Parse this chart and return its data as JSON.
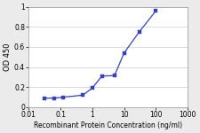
{
  "x": [
    0.031,
    0.063,
    0.125,
    0.5,
    1.0,
    2.0,
    5.0,
    10.0,
    30.0,
    100.0
  ],
  "y": [
    0.09,
    0.09,
    0.1,
    0.12,
    0.19,
    0.31,
    0.315,
    0.54,
    0.75,
    0.96
  ],
  "line_color": "#3344bb",
  "marker_color": "#3344bb",
  "marker_size": 2.5,
  "line_width": 0.9,
  "ylabel": "OD 450",
  "xlabel": "Recombinant Protein Concentration (ng/ml)",
  "xlim": [
    0.01,
    1000
  ],
  "ylim": [
    0,
    1.0
  ],
  "yticks": [
    0,
    0.2,
    0.4,
    0.6,
    0.8,
    1.0
  ],
  "ytick_labels": [
    "0",
    "0.2",
    "0.4",
    "0.6",
    "0.8",
    "1"
  ],
  "xtick_labels": [
    "0.01",
    "0.1",
    "1",
    "10",
    "100",
    "1000"
  ],
  "xtick_vals": [
    0.01,
    0.1,
    1,
    10,
    100,
    1000
  ],
  "ylabel_fontsize": 6.0,
  "xlabel_fontsize": 5.5,
  "tick_fontsize": 5.5,
  "background_color": "#ebebeb",
  "plot_bg_color": "#ffffff",
  "grid_color": "#cccccc"
}
